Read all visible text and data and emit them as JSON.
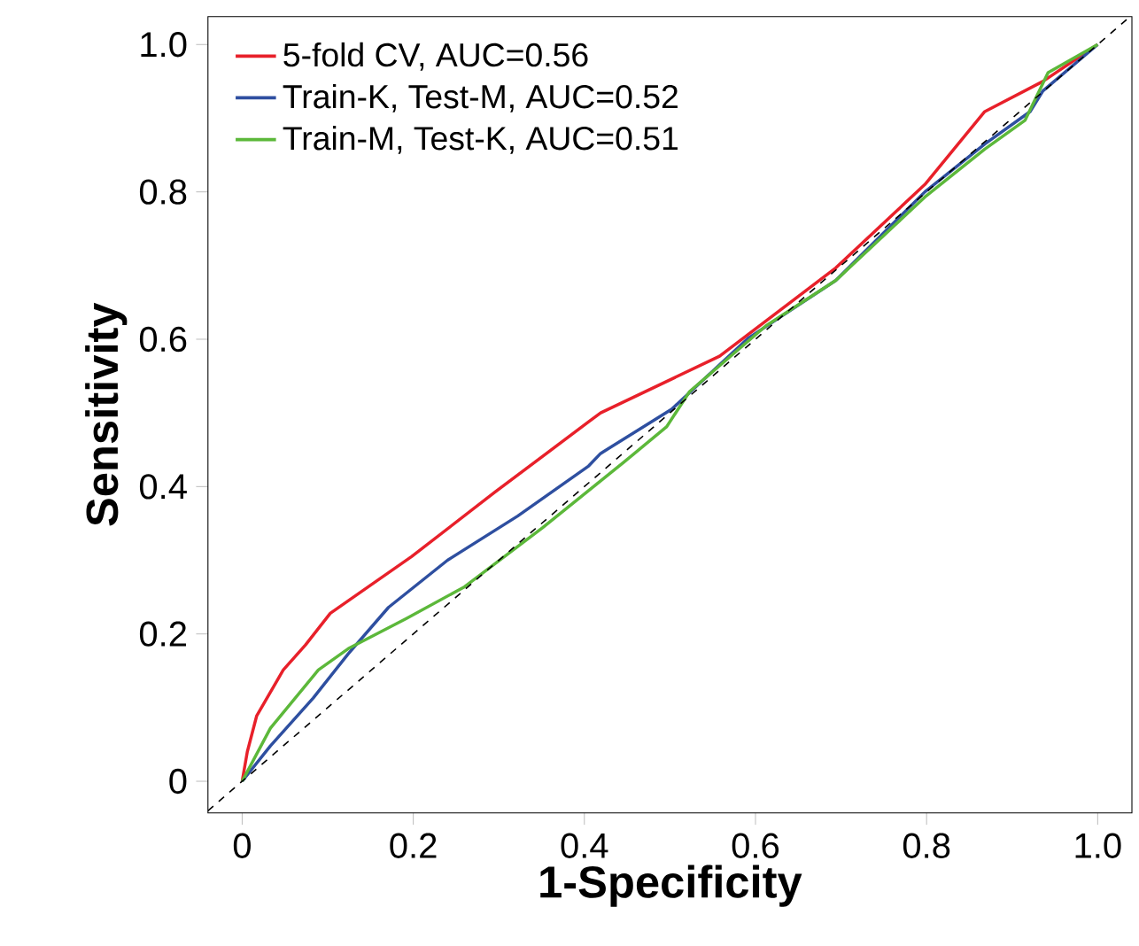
{
  "chart_data": {
    "type": "line",
    "xlabel": "1-Specificity",
    "ylabel": "Sensitivity",
    "xlim": [
      -0.04,
      1.04
    ],
    "ylim": [
      -0.043,
      1.038
    ],
    "xticks": [
      0,
      0.2,
      0.4,
      0.6,
      0.8,
      {
        "value": 1,
        "label": "1.0"
      }
    ],
    "yticks": [
      0,
      0.2,
      0.4,
      0.6,
      0.8,
      {
        "value": 1,
        "label": "1.0"
      }
    ],
    "legend": "top left",
    "grid": false,
    "marker": "none",
    "series": [
      {
        "name": "5-fold CV, AUC=0.56",
        "color": "#e8202a",
        "x": [
          0,
          0.006,
          0.017,
          0.048,
          0.074,
          0.103,
          0.198,
          0.295,
          0.405,
          0.419,
          0.558,
          0.694,
          0.798,
          0.868,
          0.936,
          1
        ],
        "values": [
          0,
          0.04,
          0.089,
          0.151,
          0.185,
          0.228,
          0.305,
          0.392,
          0.488,
          0.5,
          0.577,
          0.697,
          0.81,
          0.909,
          0.95,
          1
        ]
      },
      {
        "name": "Train-K, Test-M, AUC=0.52",
        "color": "#2e4fa0",
        "x": [
          0,
          0.033,
          0.083,
          0.124,
          0.171,
          0.24,
          0.322,
          0.405,
          0.419,
          0.502,
          0.591,
          0.694,
          0.798,
          0.868,
          0.921,
          0.936,
          1
        ],
        "values": [
          0,
          0.048,
          0.113,
          0.173,
          0.236,
          0.3,
          0.36,
          0.428,
          0.445,
          0.505,
          0.601,
          0.68,
          0.8,
          0.865,
          0.909,
          0.937,
          1
        ]
      },
      {
        "name": "Train-M, Test-K, AUC=0.51",
        "color": "#5cb83a",
        "x": [
          0,
          0.033,
          0.089,
          0.124,
          0.192,
          0.26,
          0.351,
          0.446,
          0.496,
          0.523,
          0.612,
          0.694,
          0.798,
          0.868,
          0.915,
          0.942,
          1
        ],
        "values": [
          0,
          0.072,
          0.151,
          0.18,
          0.221,
          0.264,
          0.344,
          0.433,
          0.481,
          0.529,
          0.618,
          0.68,
          0.793,
          0.858,
          0.897,
          0.962,
          1
        ]
      },
      {
        "type": "line",
        "line_style": "dashed",
        "color": "#000000",
        "x": [
          -0.04,
          1.038
        ],
        "values": [
          -0.04,
          1.038
        ]
      }
    ]
  }
}
